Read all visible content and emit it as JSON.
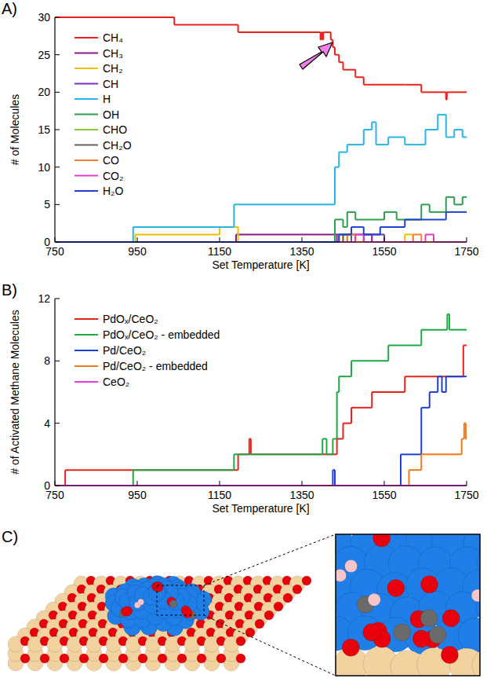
{
  "chart_data": [
    {
      "type": "step",
      "panel": "A)",
      "xlabel": "Set Temperature [K]",
      "ylabel": "# of Molecules",
      "xlim": [
        750,
        1750
      ],
      "xticks": [
        750,
        950,
        1150,
        1350,
        1550,
        1750
      ],
      "ylim": [
        0,
        30
      ],
      "yticks": [
        0,
        5,
        10,
        15,
        20,
        25,
        30
      ],
      "grid": false,
      "legend": "upper left",
      "series": [
        {
          "name": "CH₄",
          "color": "#e8231c",
          "x": [
            750,
            1040,
            1195,
            1395,
            1397,
            1400,
            1402,
            1420,
            1425,
            1430,
            1440,
            1450,
            1480,
            1500,
            1600,
            1640,
            1700,
            1702
          ],
          "values": [
            30,
            29,
            28,
            27,
            28,
            27,
            28,
            27,
            26,
            25,
            24,
            23,
            22,
            21,
            21,
            20,
            19,
            20
          ]
        },
        {
          "name": "CH₃",
          "color": "#8b1a8b",
          "x": [
            750,
            1190,
            1435,
            1500,
            1520
          ],
          "values": [
            0,
            1,
            0,
            1,
            0
          ]
        },
        {
          "name": "CH₂",
          "color": "#f0c000",
          "x": [
            750,
            945,
            1150,
            1195,
            1430,
            1450,
            1600,
            1620
          ],
          "values": [
            0,
            1,
            2,
            0,
            1,
            0,
            1,
            0
          ]
        },
        {
          "name": "CH",
          "color": "#7b2fbf",
          "x": [
            750,
            1430,
            1550
          ],
          "values": [
            0,
            1,
            0
          ]
        },
        {
          "name": "H",
          "color": "#29b5e8",
          "x": [
            750,
            940,
            1185,
            1430,
            1440,
            1460,
            1500,
            1520,
            1530,
            1560,
            1600,
            1650,
            1680,
            1700,
            1720,
            1740
          ],
          "values": [
            0,
            2,
            5,
            10,
            12,
            13,
            15,
            16,
            13,
            14,
            13,
            15,
            17,
            14,
            15,
            14
          ]
        },
        {
          "name": "OH",
          "color": "#2e9e4a",
          "x": [
            750,
            1430,
            1450,
            1460,
            1480,
            1550,
            1580,
            1640,
            1660,
            1700,
            1720,
            1740
          ],
          "values": [
            0,
            3,
            2,
            4,
            3,
            4,
            3,
            5,
            4,
            6,
            5,
            6
          ]
        },
        {
          "name": "CHO",
          "color": "#8cc63f",
          "x": [
            750,
            1440,
            1460
          ],
          "values": [
            0,
            1,
            0
          ]
        },
        {
          "name": "CH₂O",
          "color": "#606060",
          "x": [
            750,
            1450,
            1470
          ],
          "values": [
            0,
            1,
            0
          ]
        },
        {
          "name": "CO",
          "color": "#f08030",
          "x": [
            750,
            1460,
            1480,
            1620,
            1640
          ],
          "values": [
            0,
            1,
            0,
            1,
            0
          ]
        },
        {
          "name": "CO₂",
          "color": "#e040c0",
          "x": [
            750,
            1480,
            1500,
            1650,
            1670
          ],
          "values": [
            0,
            1,
            0,
            1,
            0
          ]
        },
        {
          "name": "H₂O",
          "color": "#2040d0",
          "x": [
            750,
            1440,
            1470,
            1500,
            1540,
            1600,
            1700
          ],
          "values": [
            0,
            1,
            2,
            1,
            2,
            3,
            4
          ]
        }
      ]
    },
    {
      "type": "step",
      "panel": "B)",
      "xlabel": "Set Temperature [K]",
      "ylabel": "# of Activated Methane Molecules",
      "xlim": [
        750,
        1750
      ],
      "xticks": [
        750,
        950,
        1150,
        1350,
        1550,
        1750
      ],
      "ylim": [
        0,
        12
      ],
      "yticks": [
        0,
        4,
        8,
        12
      ],
      "grid": false,
      "legend": "upper left",
      "series": [
        {
          "name": "PdOₓ/CeO₂",
          "color": "#e8231c",
          "x": [
            750,
            775,
            1195,
            1222,
            1226,
            1435,
            1450,
            1470,
            1520,
            1600,
            1742
          ],
          "values": [
            0,
            1,
            2,
            3,
            2,
            3,
            4,
            5,
            6,
            7,
            9
          ]
        },
        {
          "name": "PdOₓ/CeO₂ - embedded",
          "color": "#21a846",
          "x": [
            750,
            940,
            1185,
            1400,
            1410,
            1425,
            1435,
            1440,
            1470,
            1560,
            1640,
            1703,
            1708
          ],
          "values": [
            0,
            1,
            2,
            3,
            2,
            3,
            6,
            7,
            8,
            9,
            10,
            11,
            10
          ]
        },
        {
          "name": "Pd/CeO₂",
          "color": "#1f3fd6",
          "x": [
            750,
            1425,
            1430,
            1590,
            1640,
            1660,
            1680,
            1690,
            1700
          ],
          "values": [
            0,
            1,
            0,
            2,
            5,
            6,
            7,
            6,
            7
          ]
        },
        {
          "name": "Pd/CeO₂ - embedded",
          "color": "#f07a1a",
          "x": [
            750,
            1610,
            1640,
            1738,
            1744,
            1748
          ],
          "values": [
            0,
            1,
            2,
            3,
            4,
            3
          ]
        },
        {
          "name": "CeO₂",
          "color": "#e83ad8",
          "x": [
            750
          ],
          "values": [
            0
          ]
        }
      ]
    }
  ],
  "image_panel": {
    "label": "C)"
  }
}
